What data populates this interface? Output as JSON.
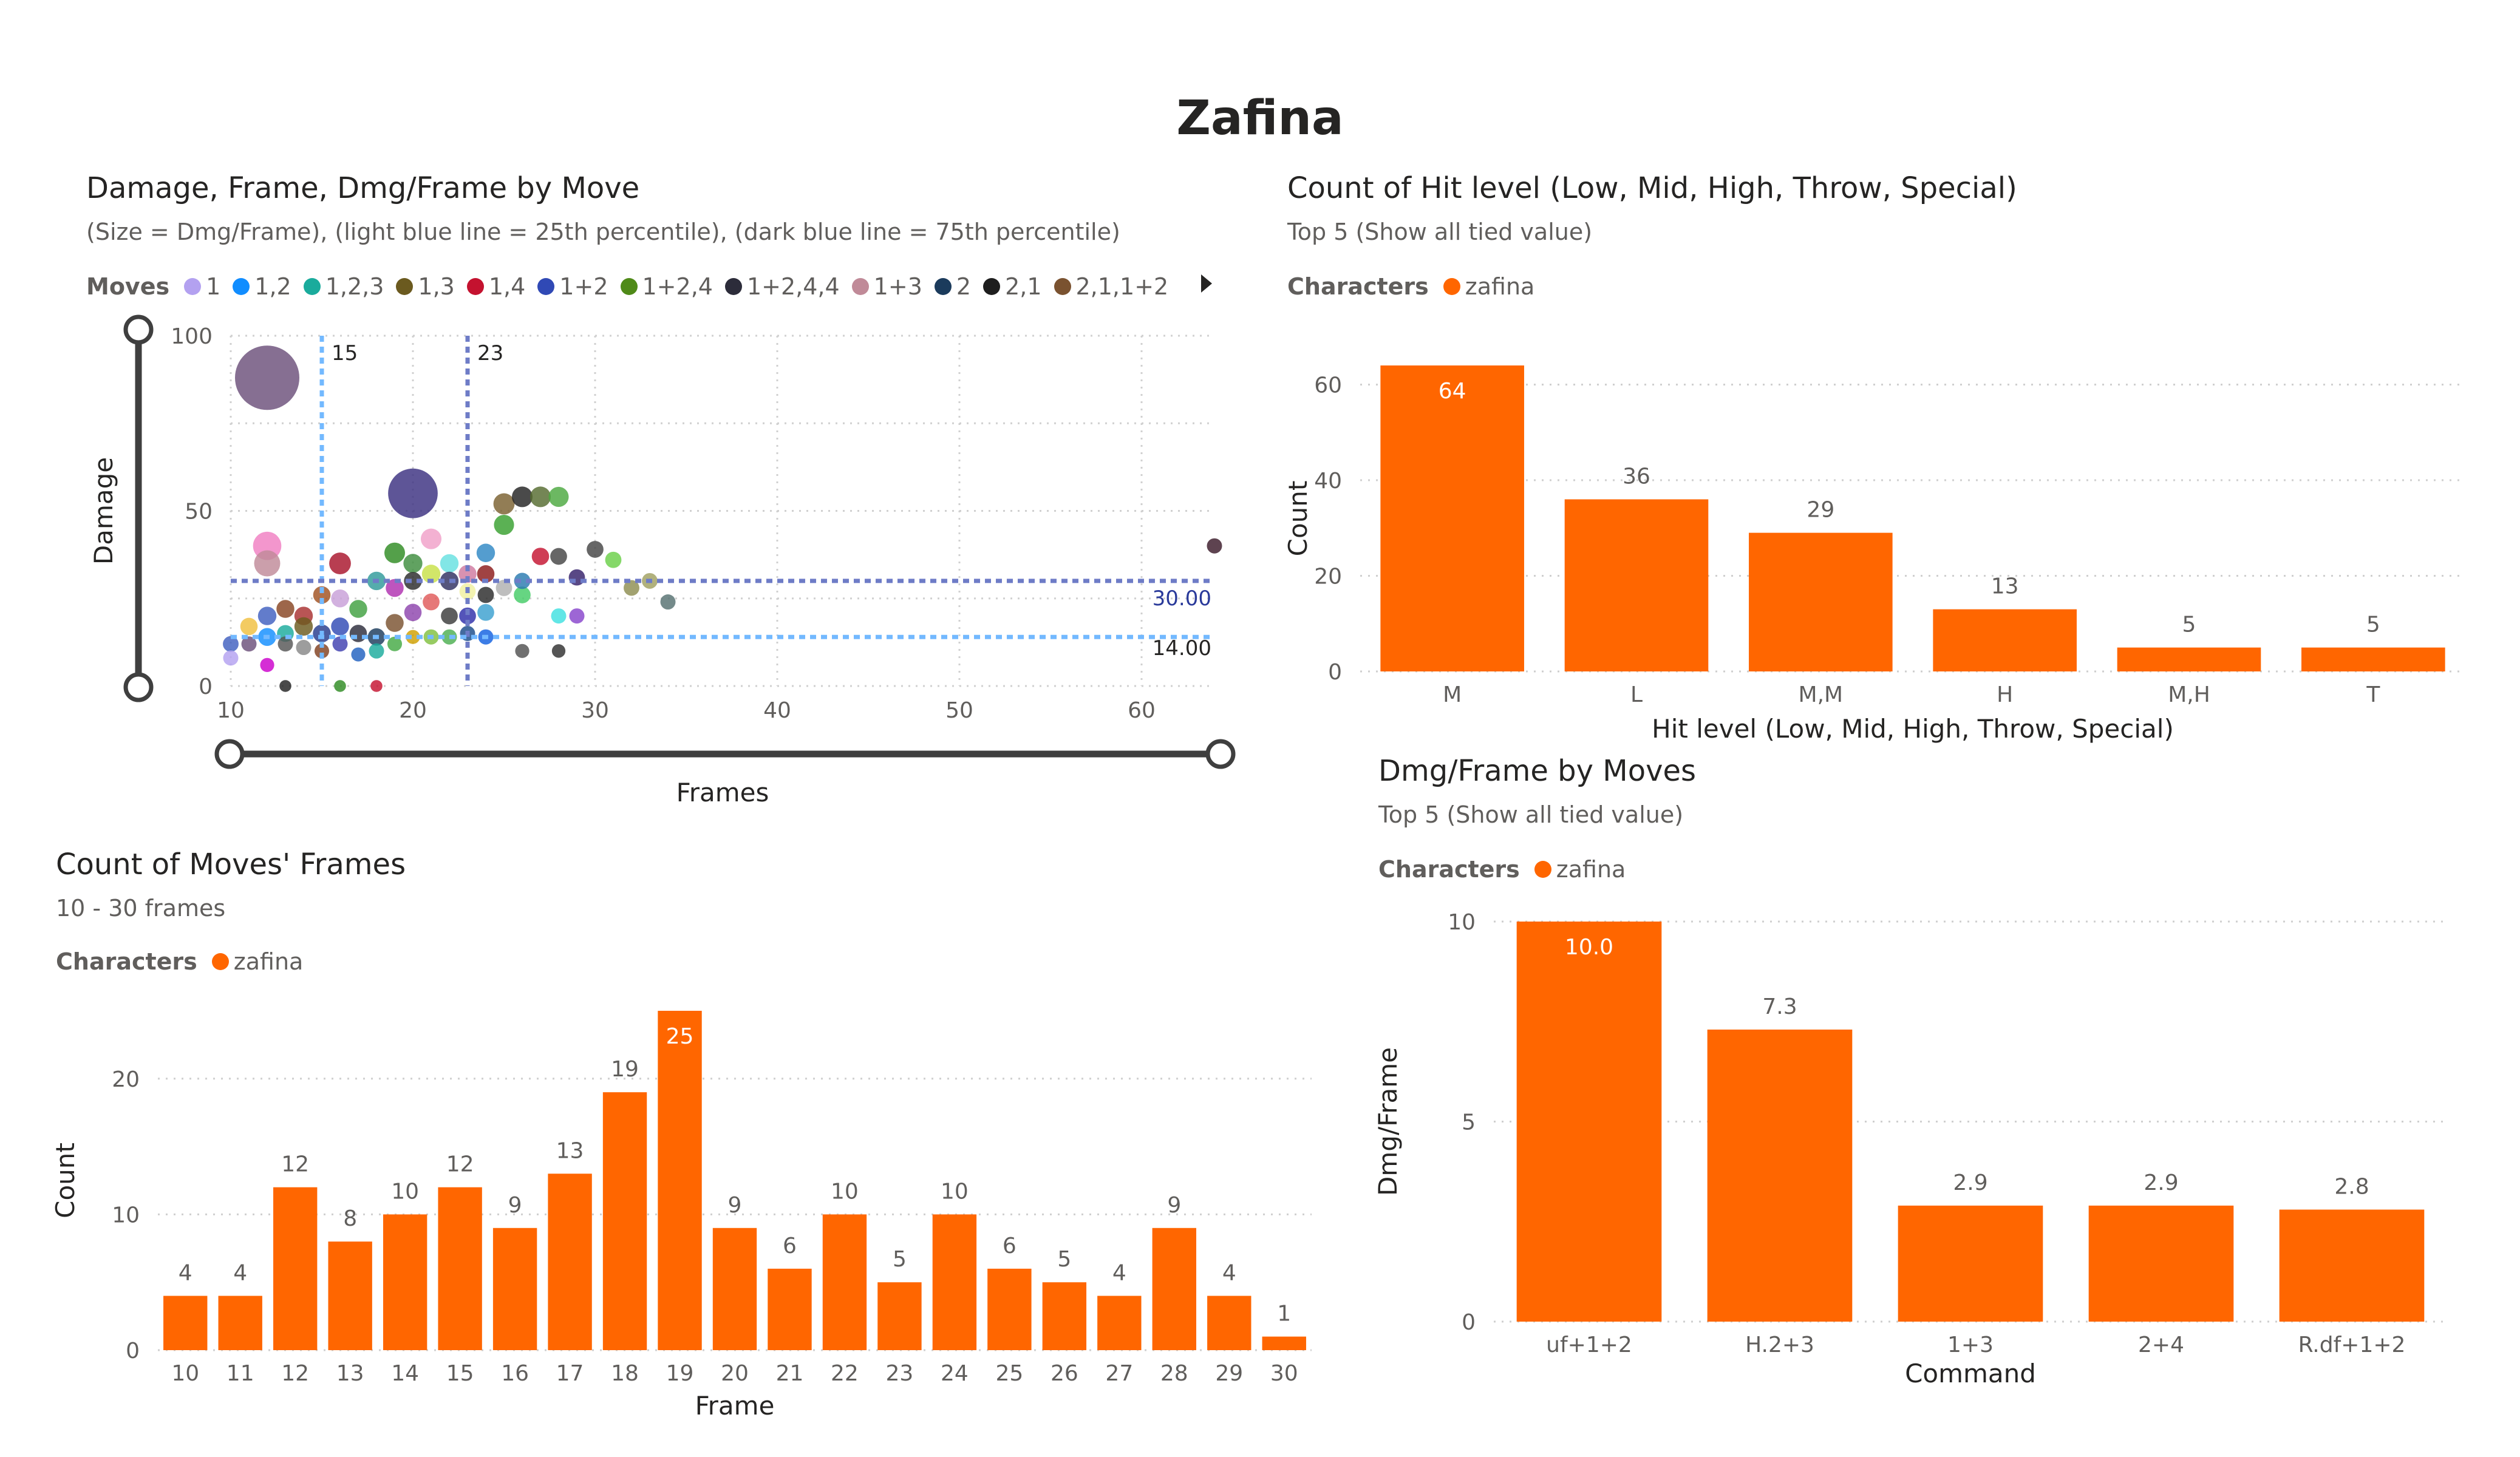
{
  "page_title": "Zafina",
  "colors": {
    "bar": "#FF6600",
    "p25": "#73B9FF",
    "p75": "#6E7CC7",
    "slider": "#3F3F3F"
  },
  "scatter": {
    "title": "Damage, Frame, Dmg/Frame by Move",
    "subtitle": "(Size = Dmg/Frame), (light blue line = 25th percentile), (dark blue line = 75th percentile)",
    "legend_label": "Moves",
    "legend": [
      {
        "name": "1",
        "color": "#B3A1F0"
      },
      {
        "name": "1,2",
        "color": "#118DFF"
      },
      {
        "name": "1,2,3",
        "color": "#1AAB9C"
      },
      {
        "name": "1,3",
        "color": "#6B5A1F"
      },
      {
        "name": "1,4",
        "color": "#C4122F"
      },
      {
        "name": "1+2",
        "color": "#3049B5"
      },
      {
        "name": "1+2,4",
        "color": "#4F8A18"
      },
      {
        "name": "1+2,4,4",
        "color": "#2C2C3A"
      },
      {
        "name": "1+3",
        "color": "#C08A98"
      },
      {
        "name": "2",
        "color": "#1B3B5C"
      },
      {
        "name": "2,1",
        "color": "#1E1E1E"
      },
      {
        "name": "2,1,1+2",
        "color": "#7A5230"
      }
    ],
    "legend_next_icon": "play-right-icon"
  },
  "hit": {
    "title": "Count of Hit level (Low, Mid, High, Throw, Special)",
    "subtitle": "Top 5 (Show all tied value)",
    "legend_label": "Characters",
    "legend_item": "zafina"
  },
  "frames": {
    "title": "Count of Moves' Frames",
    "subtitle": "10 - 30 frames",
    "legend_label": "Characters",
    "legend_item": "zafina"
  },
  "dmg": {
    "title": "Dmg/Frame by Moves",
    "subtitle": "Top 5 (Show all tied value)",
    "legend_label": "Characters",
    "legend_item": "zafina"
  },
  "chart_data": [
    {
      "type": "scatter",
      "title": "Damage, Frame, Dmg/Frame by Move",
      "xlabel": "Frames",
      "ylabel": "Damage",
      "xlim": [
        10,
        64
      ],
      "ylim": [
        0,
        100
      ],
      "xticks": [
        10,
        20,
        30,
        40,
        50,
        60
      ],
      "yticks": [
        0,
        50,
        100
      ],
      "grid": true,
      "legend": "top",
      "reference_lines": [
        {
          "axis": "x",
          "value": 15,
          "label": "15",
          "kind": "p25"
        },
        {
          "axis": "x",
          "value": 23,
          "label": "23",
          "kind": "p75"
        },
        {
          "axis": "y",
          "value": 30,
          "label": "30.00",
          "kind": "p75"
        },
        {
          "axis": "y",
          "value": 14,
          "label": "14.00",
          "kind": "p25"
        }
      ],
      "points": [
        {
          "x": 12,
          "y": 88,
          "s": 10,
          "c": "#6B4F7A"
        },
        {
          "x": 20,
          "y": 55,
          "s": 7.3,
          "c": "#3A2F80"
        },
        {
          "x": 12,
          "y": 40,
          "s": 3.4,
          "c": "#F07FC2"
        },
        {
          "x": 12,
          "y": 35,
          "s": 3,
          "c": "#C08A98"
        },
        {
          "x": 16,
          "y": 35,
          "s": 2.2,
          "c": "#A8142B"
        },
        {
          "x": 21,
          "y": 42,
          "s": 2,
          "c": "#F0A0C8"
        },
        {
          "x": 19,
          "y": 38,
          "s": 2,
          "c": "#2E8B22"
        },
        {
          "x": 22,
          "y": 35,
          "s": 1.6,
          "c": "#66E0E0"
        },
        {
          "x": 20,
          "y": 35,
          "s": 1.7,
          "c": "#3E8E3E"
        },
        {
          "x": 24,
          "y": 38,
          "s": 1.6,
          "c": "#2E88C4"
        },
        {
          "x": 25,
          "y": 52,
          "s": 2.1,
          "c": "#7A6030"
        },
        {
          "x": 26,
          "y": 54,
          "s": 2,
          "c": "#222222"
        },
        {
          "x": 27,
          "y": 54,
          "s": 2,
          "c": "#556B2F"
        },
        {
          "x": 28,
          "y": 54,
          "s": 1.9,
          "c": "#4CA840"
        },
        {
          "x": 25,
          "y": 46,
          "s": 1.9,
          "c": "#37A02E"
        },
        {
          "x": 27,
          "y": 37,
          "s": 1.4,
          "c": "#C4122F"
        },
        {
          "x": 28,
          "y": 37,
          "s": 1.3,
          "c": "#444444"
        },
        {
          "x": 30,
          "y": 39,
          "s": 1.3,
          "c": "#444444"
        },
        {
          "x": 31,
          "y": 36,
          "s": 1.2,
          "c": "#6AD048"
        },
        {
          "x": 29,
          "y": 31,
          "s": 1.2,
          "c": "#35206A"
        },
        {
          "x": 32,
          "y": 28,
          "s": 1.1,
          "c": "#8E8E50"
        },
        {
          "x": 33,
          "y": 30,
          "s": 1.1,
          "c": "#A0A060"
        },
        {
          "x": 34,
          "y": 24,
          "s": 1,
          "c": "#557070"
        },
        {
          "x": 26,
          "y": 26,
          "s": 1.3,
          "c": "#44CC66"
        },
        {
          "x": 25,
          "y": 28,
          "s": 1.2,
          "c": "#B0B0B0"
        },
        {
          "x": 24,
          "y": 32,
          "s": 1.4,
          "c": "#8B1A1A"
        },
        {
          "x": 23,
          "y": 32,
          "s": 1.5,
          "c": "#D07AA0"
        },
        {
          "x": 22,
          "y": 30,
          "s": 1.6,
          "c": "#2F2F60"
        },
        {
          "x": 21,
          "y": 32,
          "s": 1.6,
          "c": "#C8E048"
        },
        {
          "x": 20,
          "y": 30,
          "s": 1.5,
          "c": "#2A2A2A"
        },
        {
          "x": 19,
          "y": 28,
          "s": 1.5,
          "c": "#B030B0"
        },
        {
          "x": 18,
          "y": 30,
          "s": 1.6,
          "c": "#2F9A9A"
        },
        {
          "x": 17,
          "y": 22,
          "s": 1.5,
          "c": "#40A040"
        },
        {
          "x": 16,
          "y": 25,
          "s": 1.5,
          "c": "#C8A0D8"
        },
        {
          "x": 15,
          "y": 26,
          "s": 1.4,
          "c": "#A05020"
        },
        {
          "x": 14,
          "y": 20,
          "s": 1.6,
          "c": "#A83030"
        },
        {
          "x": 13,
          "y": 22,
          "s": 1.5,
          "c": "#884422"
        },
        {
          "x": 12,
          "y": 20,
          "s": 1.6,
          "c": "#3F5FBF"
        },
        {
          "x": 11,
          "y": 17,
          "s": 1.4,
          "c": "#F0C040"
        },
        {
          "x": 12,
          "y": 14,
          "s": 1.5,
          "c": "#118DFF"
        },
        {
          "x": 13,
          "y": 15,
          "s": 1.3,
          "c": "#1AAB9C"
        },
        {
          "x": 14,
          "y": 17,
          "s": 1.6,
          "c": "#6B5A1F"
        },
        {
          "x": 15,
          "y": 15,
          "s": 1.5,
          "c": "#253A8C"
        },
        {
          "x": 16,
          "y": 17,
          "s": 1.5,
          "c": "#3049B5"
        },
        {
          "x": 17,
          "y": 15,
          "s": 1.4,
          "c": "#2C2C3A"
        },
        {
          "x": 18,
          "y": 14,
          "s": 1.4,
          "c": "#1B3B5C"
        },
        {
          "x": 19,
          "y": 18,
          "s": 1.5,
          "c": "#7A5230"
        },
        {
          "x": 20,
          "y": 21,
          "s": 1.4,
          "c": "#8E44AD"
        },
        {
          "x": 21,
          "y": 24,
          "s": 1.3,
          "c": "#E05A5A"
        },
        {
          "x": 22,
          "y": 20,
          "s": 1.3,
          "c": "#3A3A3A"
        },
        {
          "x": 23,
          "y": 20,
          "s": 1.3,
          "c": "#2E2EAA"
        },
        {
          "x": 24,
          "y": 21,
          "s": 1.3,
          "c": "#3AA0D0"
        },
        {
          "x": 23,
          "y": 27,
          "s": 1.2,
          "c": "#F0F0A0"
        },
        {
          "x": 24,
          "y": 26,
          "s": 1.2,
          "c": "#2A2A2A"
        },
        {
          "x": 26,
          "y": 30,
          "s": 1.2,
          "c": "#2A7AB0"
        },
        {
          "x": 21,
          "y": 14,
          "s": 1,
          "c": "#80C040"
        },
        {
          "x": 22,
          "y": 14,
          "s": 1,
          "c": "#4CAF50"
        },
        {
          "x": 23,
          "y": 15,
          "s": 1,
          "c": "#1A4A8A"
        },
        {
          "x": 24,
          "y": 14,
          "s": 1,
          "c": "#1160E0"
        },
        {
          "x": 28,
          "y": 20,
          "s": 1,
          "c": "#40E0E0"
        },
        {
          "x": 29,
          "y": 20,
          "s": 1,
          "c": "#8844CC"
        },
        {
          "x": 18,
          "y": 10,
          "s": 1,
          "c": "#1AAB9C"
        },
        {
          "x": 17,
          "y": 9,
          "s": 0.8,
          "c": "#2060C0"
        },
        {
          "x": 19,
          "y": 12,
          "s": 0.9,
          "c": "#44AA44"
        },
        {
          "x": 20,
          "y": 14,
          "s": 0.8,
          "c": "#D0A000"
        },
        {
          "x": 16,
          "y": 12,
          "s": 1,
          "c": "#4040B0"
        },
        {
          "x": 15,
          "y": 10,
          "s": 0.9,
          "c": "#804020"
        },
        {
          "x": 14,
          "y": 11,
          "s": 1,
          "c": "#888888"
        },
        {
          "x": 13,
          "y": 12,
          "s": 1,
          "c": "#555555"
        },
        {
          "x": 11,
          "y": 12,
          "s": 1,
          "c": "#6B4F7A"
        },
        {
          "x": 10,
          "y": 8,
          "s": 1,
          "c": "#B3A1F0"
        },
        {
          "x": 10,
          "y": 12,
          "s": 1.1,
          "c": "#3F5FBF"
        },
        {
          "x": 12,
          "y": 6,
          "s": 0.8,
          "c": "#CC00CC"
        },
        {
          "x": 26,
          "y": 10,
          "s": 0.8,
          "c": "#505050"
        },
        {
          "x": 28,
          "y": 10,
          "s": 0.7,
          "c": "#303030"
        },
        {
          "x": 64,
          "y": 40,
          "s": 1,
          "c": "#3A1A2A"
        },
        {
          "x": 13,
          "y": 0,
          "s": 0.4,
          "c": "#222222"
        },
        {
          "x": 18,
          "y": 0,
          "s": 0.4,
          "c": "#C4122F"
        },
        {
          "x": 16,
          "y": 0,
          "s": 0.4,
          "c": "#2E8B22"
        }
      ]
    },
    {
      "type": "bar",
      "title": "Count of Hit level (Low, Mid, High, Throw, Special)",
      "xlabel": "Hit level (Low, Mid, High, Throw, Special)",
      "ylabel": "Count",
      "categories": [
        "M",
        "L",
        "M,M",
        "H",
        "M,H",
        "T"
      ],
      "series": [
        {
          "name": "zafina",
          "values": [
            64,
            36,
            29,
            13,
            5,
            5
          ]
        }
      ],
      "data_labels": [
        "64",
        "36",
        "29",
        "13",
        "5",
        "5"
      ],
      "ylim": [
        0,
        64
      ],
      "yticks": [
        0,
        20,
        40,
        60
      ],
      "grid": true,
      "legend": "top-left"
    },
    {
      "type": "bar",
      "title": "Count of Moves' Frames",
      "xlabel": "Frame",
      "ylabel": "Count",
      "categories": [
        "10",
        "11",
        "12",
        "13",
        "14",
        "15",
        "16",
        "17",
        "18",
        "19",
        "20",
        "21",
        "22",
        "23",
        "24",
        "25",
        "26",
        "27",
        "28",
        "29",
        "30"
      ],
      "series": [
        {
          "name": "zafina",
          "values": [
            4,
            4,
            12,
            8,
            10,
            12,
            9,
            13,
            19,
            25,
            9,
            6,
            10,
            5,
            10,
            6,
            5,
            4,
            9,
            4,
            1
          ]
        }
      ],
      "data_labels": [
        "4",
        "4",
        "12",
        "8",
        "10",
        "12",
        "9",
        "13",
        "19",
        "25",
        "9",
        "6",
        "10",
        "5",
        "10",
        "6",
        "5",
        "4",
        "9",
        "4",
        "1"
      ],
      "ylim": [
        0,
        25
      ],
      "yticks": [
        0,
        10,
        20
      ],
      "grid": true,
      "legend": "top-left"
    },
    {
      "type": "bar",
      "title": "Dmg/Frame by Moves",
      "xlabel": "Command",
      "ylabel": "Dmg/Frame",
      "categories": [
        "uf+1+2",
        "H.2+3",
        "1+3",
        "2+4",
        "R.df+1+2"
      ],
      "series": [
        {
          "name": "zafina",
          "values": [
            10.0,
            7.3,
            2.9,
            2.9,
            2.8
          ]
        }
      ],
      "data_labels": [
        "10.0",
        "7.3",
        "2.9",
        "2.9",
        "2.8"
      ],
      "ylim": [
        0,
        10
      ],
      "yticks": [
        0,
        5,
        10
      ],
      "grid": true,
      "legend": "top-left"
    }
  ]
}
